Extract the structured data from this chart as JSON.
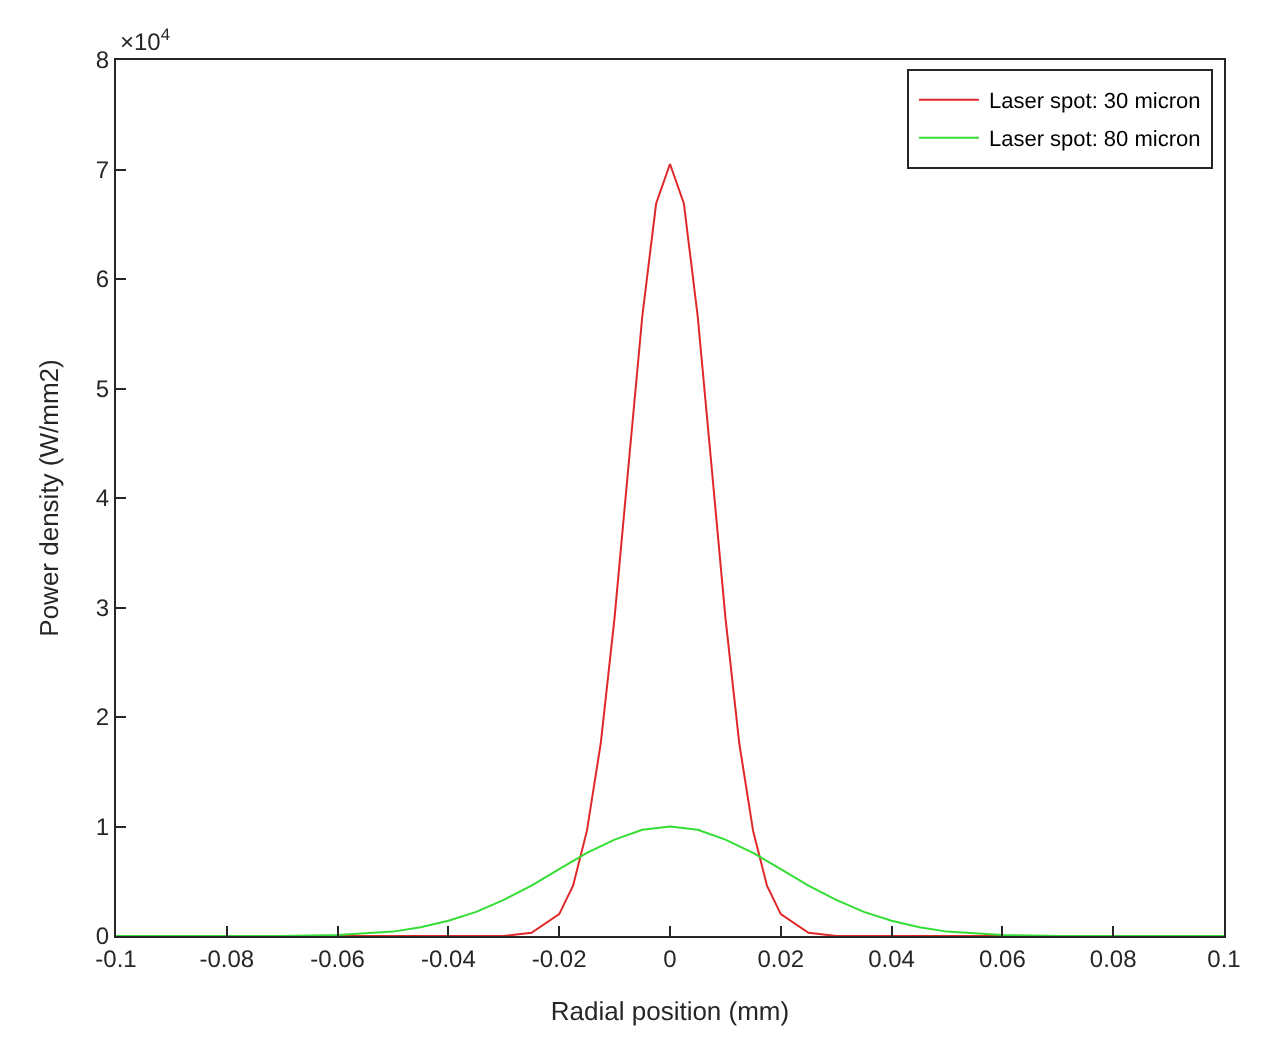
{
  "chart_data": {
    "type": "line",
    "xlabel": "Radial position (mm)",
    "ylabel": "Power density (W/mm2)",
    "annotations": [
      "×10$^{4}$"
    ],
    "series": [
      {
        "name": "Laser spot: 30 micron",
        "color": "#e0282a",
        "x": [
          -0.1,
          -0.05,
          -0.03,
          -0.025,
          -0.02,
          -0.0175,
          -0.015,
          -0.0125,
          -0.01,
          -0.0075,
          -0.005,
          -0.0025,
          0,
          0.0025,
          0.005,
          0.0075,
          0.01,
          0.0125,
          0.015,
          0.0175,
          0.02,
          0.025,
          0.03,
          0.05,
          0.1
        ],
        "values": [
          0,
          0,
          0,
          0.03,
          0.2,
          0.46,
          0.96,
          1.76,
          2.91,
          4.29,
          5.66,
          6.69,
          7.05,
          6.69,
          5.66,
          4.29,
          2.91,
          1.76,
          0.96,
          0.46,
          0.2,
          0.03,
          0,
          0,
          0
        ]
      },
      {
        "name": "Laser spot: 80 micron",
        "color": "#33dd33",
        "x": [
          -0.1,
          -0.07,
          -0.06,
          -0.05,
          -0.045,
          -0.04,
          -0.035,
          -0.03,
          -0.025,
          -0.02,
          -0.015,
          -0.01,
          -0.005,
          0,
          0.005,
          0.01,
          0.015,
          0.02,
          0.025,
          0.03,
          0.035,
          0.04,
          0.045,
          0.05,
          0.06,
          0.07,
          0.1
        ],
        "values": [
          0,
          0,
          0.01,
          0.04,
          0.08,
          0.14,
          0.22,
          0.33,
          0.46,
          0.61,
          0.76,
          0.88,
          0.97,
          1.0,
          0.97,
          0.88,
          0.76,
          0.61,
          0.46,
          0.33,
          0.22,
          0.14,
          0.08,
          0.04,
          0.01,
          0,
          0
        ]
      }
    ],
    "xlim": [
      -0.1,
      0.1
    ],
    "xticks": [
      -0.1,
      -0.08,
      -0.06,
      -0.04,
      -0.02,
      0,
      0.02,
      0.04,
      0.06,
      0.08,
      0.1
    ],
    "ylim": [
      0,
      8
    ],
    "yticks": [
      0,
      1,
      2,
      3,
      4,
      5,
      6,
      7,
      8
    ],
    "legend": "top right",
    "marker": "none",
    "line_style": "solid"
  }
}
